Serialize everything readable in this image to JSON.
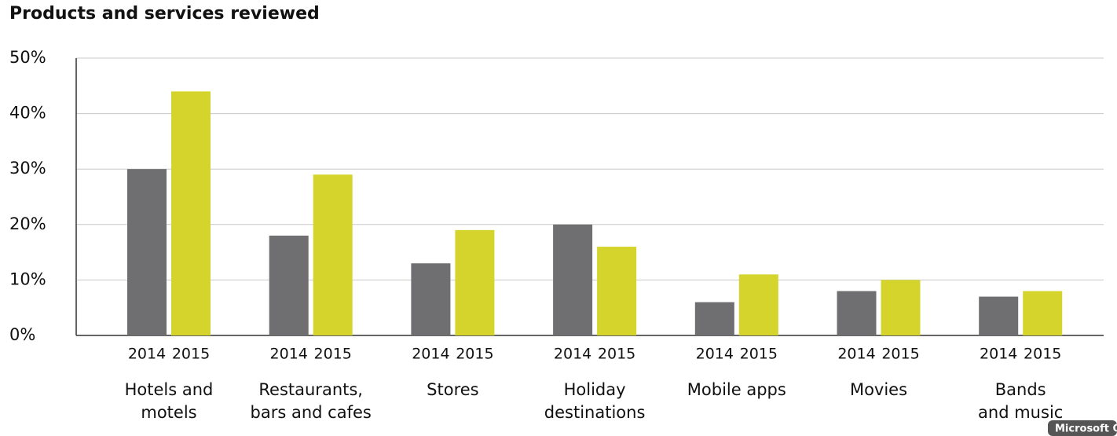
{
  "chart_data": {
    "type": "bar",
    "title": "Products and services reviewed",
    "categories": [
      [
        "Hotels and",
        "motels"
      ],
      [
        "Restaurants,",
        "bars and cafes"
      ],
      [
        "Stores"
      ],
      [
        "Holiday",
        "destinations"
      ],
      [
        "Mobile apps"
      ],
      [
        "Movies"
      ],
      [
        "Bands",
        "and music"
      ]
    ],
    "series": [
      {
        "name": "2014",
        "color": "#6f6f71",
        "values": [
          30,
          18,
          13,
          20,
          6,
          8,
          7
        ]
      },
      {
        "name": "2015",
        "color": "#d4d42c",
        "values": [
          44,
          29,
          19,
          16,
          11,
          10,
          8
        ]
      }
    ],
    "ylim": [
      0,
      50
    ],
    "yticks": [
      {
        "value": 0,
        "label": "0%"
      },
      {
        "value": 10,
        "label": "10%"
      },
      {
        "value": 20,
        "label": "20%"
      },
      {
        "value": 30,
        "label": "30%"
      },
      {
        "value": 40,
        "label": "40%"
      },
      {
        "value": 50,
        "label": "50%"
      }
    ],
    "grid": true
  },
  "watermark": "Microsoft C"
}
